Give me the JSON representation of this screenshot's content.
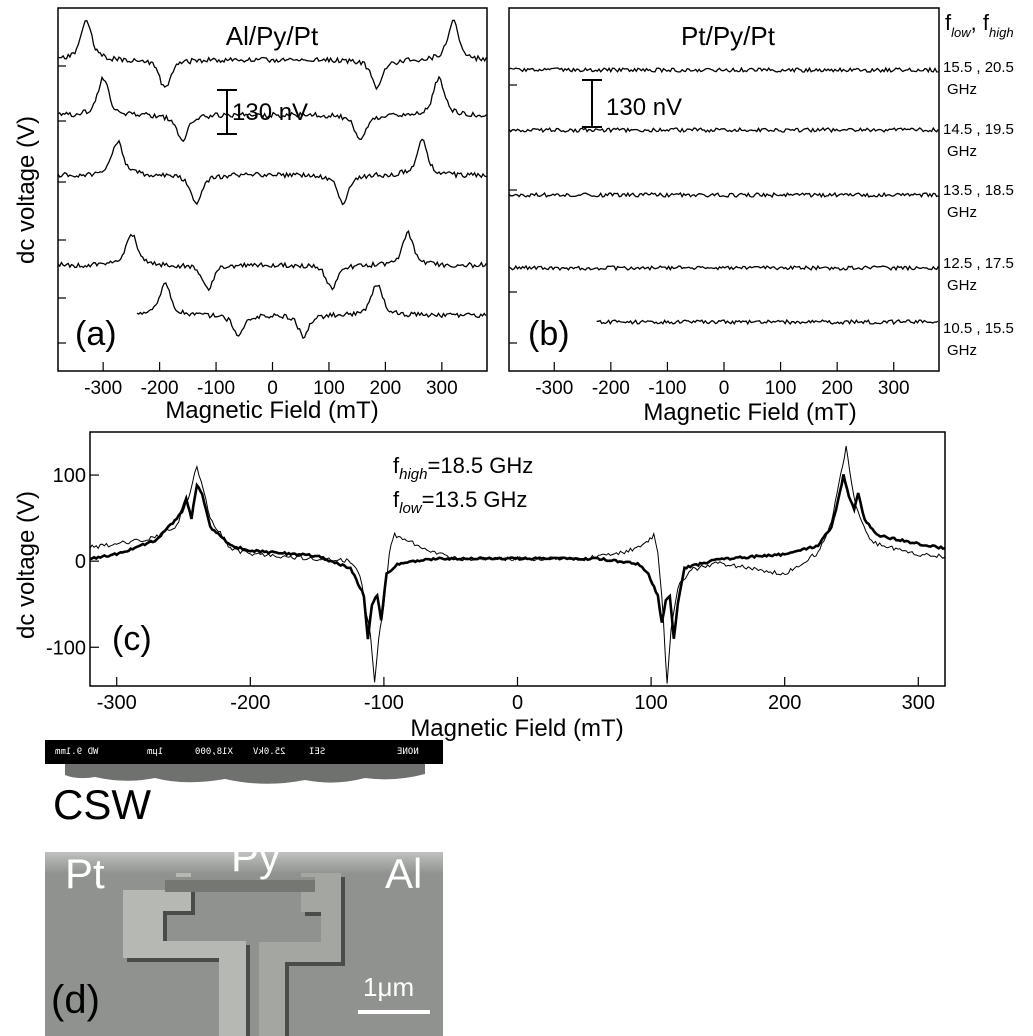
{
  "chart_data": [
    {
      "panel": "(a)",
      "type": "line",
      "title": "Al/Py/Pt",
      "xlabel": "Magnetic Field (mT)",
      "ylabel": "dc voltage (V)",
      "xlim": [
        -380,
        380
      ],
      "xticks": [
        "-300",
        "-200",
        "-100",
        "0",
        "100",
        "200",
        "300"
      ],
      "scale_bar": "130 nV",
      "series": [
        {
          "label": "15.5 , 20.5 GHz",
          "x_start": -380,
          "features": [
            [
              -330,
              0.75
            ],
            [
              -190,
              -0.55
            ],
            [
              185,
              -0.55
            ],
            [
              320,
              0.75
            ]
          ]
        },
        {
          "label": "14.5 , 19.5 GHz",
          "x_start": -380,
          "features": [
            [
              -300,
              0.7
            ],
            [
              -160,
              -0.5
            ],
            [
              155,
              -0.5
            ],
            [
              295,
              0.7
            ]
          ]
        },
        {
          "label": "13.5 , 18.5 GHz",
          "x_start": -380,
          "features": [
            [
              -275,
              0.65
            ],
            [
              -135,
              -0.55
            ],
            [
              125,
              -0.55
            ],
            [
              265,
              0.65
            ]
          ]
        },
        {
          "label": "12.5 , 17.5 GHz",
          "x_start": -380,
          "features": [
            [
              -250,
              0.6
            ],
            [
              -115,
              -0.45
            ],
            [
              105,
              -0.45
            ],
            [
              240,
              0.6
            ]
          ]
        },
        {
          "label": "10.5 , 15.5 GHz",
          "x_start": -240,
          "features": [
            [
              -190,
              0.6
            ],
            [
              -60,
              -0.4
            ],
            [
              55,
              -0.4
            ],
            [
              185,
              0.6
            ]
          ]
        }
      ]
    },
    {
      "panel": "(b)",
      "type": "line",
      "title": "Pt/Py/Pt",
      "xlabel": "Magnetic Field (mT)",
      "xlim": [
        -380,
        380
      ],
      "xticks": [
        "-300",
        "-200",
        "-100",
        "0",
        "100",
        "200",
        "300"
      ],
      "scale_bar": "130 nV",
      "legend_header": "f_low , f_high",
      "series": [
        {
          "label": "15.5 , 20.5 GHz",
          "x_start": -380
        },
        {
          "label": "14.5 , 19.5 GHz",
          "x_start": -380
        },
        {
          "label": "13.5 , 18.5 GHz",
          "x_start": -380
        },
        {
          "label": "12.5 , 17.5 GHz",
          "x_start": -380
        },
        {
          "label": "10.5 , 15.5 GHz",
          "x_start": -225
        }
      ]
    },
    {
      "panel": "(c)",
      "type": "line",
      "xlabel": "Magnetic Field (mT)",
      "ylabel": "dc voltage (V)",
      "xlim": [
        -320,
        320
      ],
      "ylim": [
        -145,
        150
      ],
      "xticks": [
        -300,
        -200,
        -100,
        0,
        100,
        200,
        300
      ],
      "yticks": [
        -100,
        0,
        100
      ],
      "annotations": [
        "f_high=18.5 GHz",
        "f_low=13.5 GHz"
      ],
      "series": [
        {
          "style": "thick",
          "points": [
            [
              -320,
              3
            ],
            [
              -300,
              8
            ],
            [
              -270,
              25
            ],
            [
              -252,
              55
            ],
            [
              -248,
              72
            ],
            [
              -244,
              50
            ],
            [
              -240,
              88
            ],
            [
              -236,
              78
            ],
            [
              -230,
              40
            ],
            [
              -215,
              18
            ],
            [
              -200,
              12
            ],
            [
              -150,
              6
            ],
            [
              -125,
              -8
            ],
            [
              -115,
              -40
            ],
            [
              -112,
              -90
            ],
            [
              -109,
              -50
            ],
            [
              -105,
              -40
            ],
            [
              -102,
              -68
            ],
            [
              -98,
              -15
            ],
            [
              -90,
              -3
            ],
            [
              -60,
              3
            ],
            [
              0,
              3
            ],
            [
              60,
              3
            ],
            [
              90,
              -3
            ],
            [
              98,
              -15
            ],
            [
              105,
              -40
            ],
            [
              108,
              -72
            ],
            [
              111,
              -45
            ],
            [
              114,
              -40
            ],
            [
              117,
              -90
            ],
            [
              120,
              -50
            ],
            [
              125,
              -8
            ],
            [
              150,
              2
            ],
            [
              200,
              8
            ],
            [
              225,
              18
            ],
            [
              235,
              40
            ],
            [
              240,
              70
            ],
            [
              244,
              100
            ],
            [
              248,
              75
            ],
            [
              252,
              60
            ],
            [
              255,
              78
            ],
            [
              260,
              48
            ],
            [
              270,
              30
            ],
            [
              300,
              20
            ],
            [
              320,
              15
            ]
          ]
        },
        {
          "style": "thin",
          "points": [
            [
              -320,
              16
            ],
            [
              -300,
              20
            ],
            [
              -270,
              28
            ],
            [
              -255,
              42
            ],
            [
              -245,
              78
            ],
            [
              -240,
              112
            ],
            [
              -235,
              80
            ],
            [
              -230,
              50
            ],
            [
              -215,
              15
            ],
            [
              -200,
              8
            ],
            [
              -150,
              3
            ],
            [
              -125,
              0
            ],
            [
              -118,
              -15
            ],
            [
              -113,
              -60
            ],
            [
              -110,
              -85
            ],
            [
              -107,
              -142
            ],
            [
              -104,
              -90
            ],
            [
              -100,
              -50
            ],
            [
              -96,
              10
            ],
            [
              -92,
              30
            ],
            [
              -80,
              22
            ],
            [
              -50,
              3
            ],
            [
              0,
              3
            ],
            [
              50,
              3
            ],
            [
              80,
              10
            ],
            [
              95,
              20
            ],
            [
              102,
              30
            ],
            [
              105,
              10
            ],
            [
              108,
              -40
            ],
            [
              112,
              -142
            ],
            [
              115,
              -80
            ],
            [
              120,
              -30
            ],
            [
              130,
              -10
            ],
            [
              150,
              -2
            ],
            [
              200,
              -15
            ],
            [
              225,
              10
            ],
            [
              235,
              45
            ],
            [
              242,
              100
            ],
            [
              246,
              132
            ],
            [
              250,
              90
            ],
            [
              255,
              55
            ],
            [
              265,
              22
            ],
            [
              300,
              8
            ],
            [
              320,
              5
            ]
          ]
        }
      ]
    }
  ],
  "panel_d": {
    "label": "(d)",
    "mode_text": "CSW",
    "label_pt": "Pt",
    "label_py": "Py",
    "label_al": "Al",
    "scale_bar_label": "1μm",
    "sem_header": [
      "NONE",
      "SEI",
      "25.0kV",
      "X18,000",
      "1μm",
      "WD 9.1mm"
    ]
  }
}
